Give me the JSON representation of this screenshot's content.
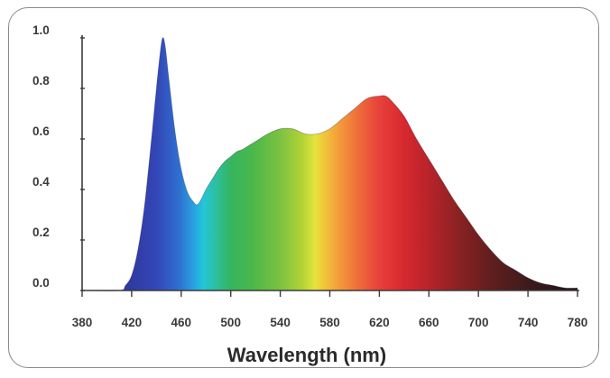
{
  "chart_data": {
    "type": "area",
    "xlabel": "Wavelength (nm)",
    "ylabel": "",
    "title": "",
    "xlim": [
      380,
      780
    ],
    "ylim": [
      0,
      1.0
    ],
    "x_ticks": [
      "380",
      "420",
      "460",
      "500",
      "540",
      "580",
      "620",
      "660",
      "700",
      "740",
      "780"
    ],
    "y_ticks": [
      "0.0",
      "0.2",
      "0.4",
      "0.6",
      "0.8",
      "1.0"
    ],
    "grid": false,
    "legend": "none",
    "fill": "visible-spectrum-gradient",
    "series": [
      {
        "x": [
          380,
          410,
          415,
          420,
          425,
          430,
          435,
          440,
          443,
          445,
          447,
          450,
          455,
          460,
          465,
          470,
          473,
          476,
          480,
          485,
          490,
          495,
          500,
          505,
          510,
          520,
          530,
          540,
          550,
          560,
          570,
          580,
          590,
          600,
          610,
          620,
          625,
          630,
          640,
          650,
          660,
          670,
          680,
          690,
          700,
          710,
          720,
          730,
          740,
          750,
          760,
          770,
          780
        ],
        "y": [
          0.0,
          0.0,
          0.02,
          0.06,
          0.16,
          0.32,
          0.55,
          0.8,
          0.94,
          1.0,
          0.97,
          0.84,
          0.63,
          0.48,
          0.39,
          0.35,
          0.34,
          0.36,
          0.4,
          0.44,
          0.48,
          0.51,
          0.53,
          0.55,
          0.56,
          0.59,
          0.62,
          0.64,
          0.64,
          0.62,
          0.62,
          0.64,
          0.68,
          0.72,
          0.76,
          0.77,
          0.77,
          0.75,
          0.69,
          0.6,
          0.52,
          0.44,
          0.36,
          0.29,
          0.22,
          0.16,
          0.11,
          0.08,
          0.05,
          0.03,
          0.02,
          0.01,
          0.01
        ]
      }
    ]
  }
}
